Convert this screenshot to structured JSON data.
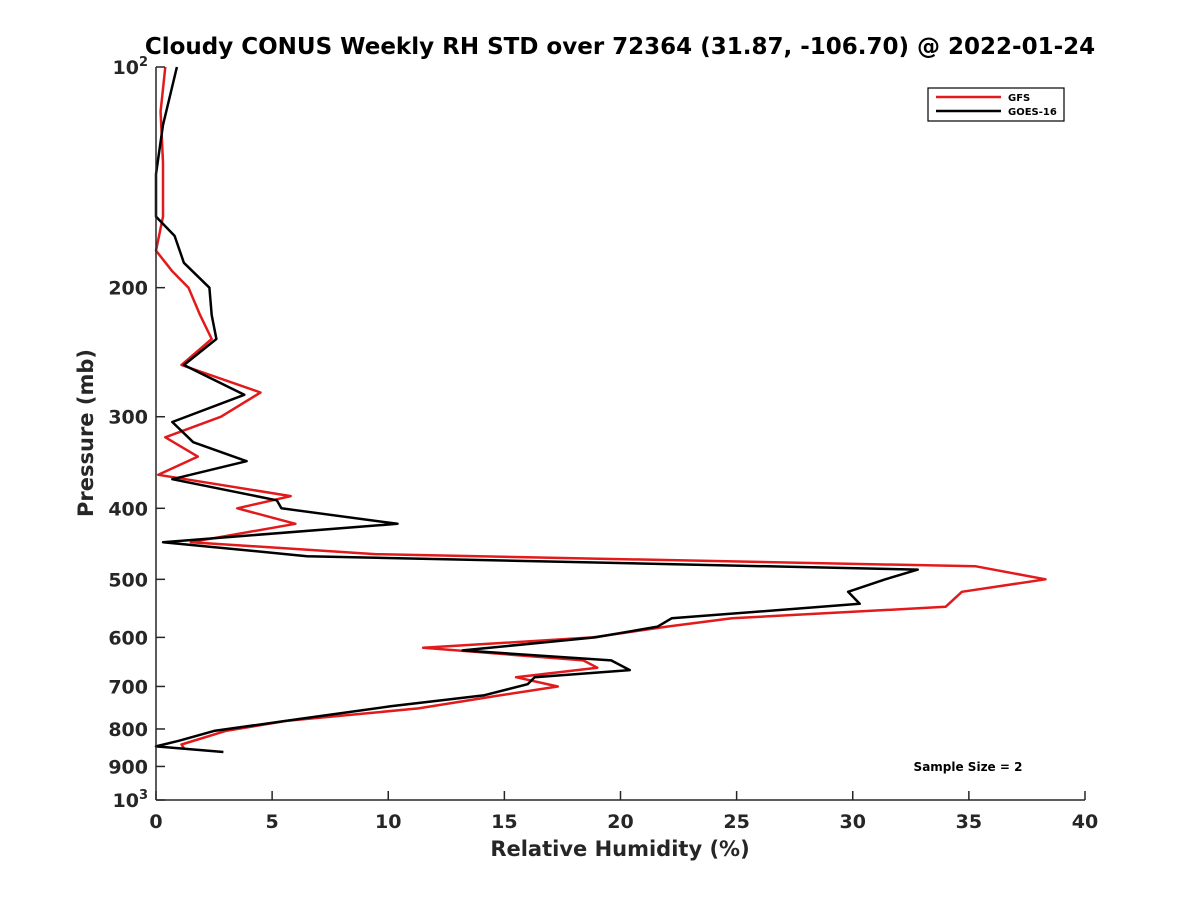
{
  "chart_data": {
    "type": "line",
    "title": "Cloudy CONUS Weekly RH STD over 72364 (31.87, -106.70) @ 2022-01-24",
    "xlabel": "Relative Humidity (%)",
    "ylabel": "Pressure (mb)",
    "xlim": [
      0,
      40
    ],
    "ylim": [
      100,
      1000
    ],
    "y_scale": "log",
    "y_reversed": true,
    "grid": false,
    "legend_position": "top-right",
    "x_ticks": [
      {
        "value": 0,
        "label": "0"
      },
      {
        "value": 5,
        "label": "5"
      },
      {
        "value": 10,
        "label": "10"
      },
      {
        "value": 15,
        "label": "15"
      },
      {
        "value": 20,
        "label": "20"
      },
      {
        "value": 25,
        "label": "25"
      },
      {
        "value": 30,
        "label": "30"
      },
      {
        "value": 35,
        "label": "35"
      },
      {
        "value": 40,
        "label": "40"
      }
    ],
    "y_ticks": [
      {
        "value": 100,
        "label": "10",
        "sup": "2"
      },
      {
        "value": 200,
        "label": "200",
        "sup": ""
      },
      {
        "value": 300,
        "label": "300",
        "sup": ""
      },
      {
        "value": 400,
        "label": "400",
        "sup": ""
      },
      {
        "value": 500,
        "label": "500",
        "sup": ""
      },
      {
        "value": 600,
        "label": "600",
        "sup": ""
      },
      {
        "value": 700,
        "label": "700",
        "sup": ""
      },
      {
        "value": 800,
        "label": "800",
        "sup": ""
      },
      {
        "value": 900,
        "label": "900",
        "sup": ""
      },
      {
        "value": 1000,
        "label": "10",
        "sup": "3"
      }
    ],
    "series": [
      {
        "name": "GFS",
        "color": "#e31a1c",
        "points": [
          [
            0.4,
            100
          ],
          [
            0.2,
            115
          ],
          [
            0.3,
            135
          ],
          [
            0.3,
            160
          ],
          [
            0.0,
            178
          ],
          [
            0.7,
            190
          ],
          [
            1.4,
            200
          ],
          [
            1.9,
            218
          ],
          [
            2.4,
            235
          ],
          [
            1.1,
            255
          ],
          [
            4.5,
            278
          ],
          [
            2.8,
            300
          ],
          [
            0.4,
            320
          ],
          [
            1.8,
            340
          ],
          [
            0.1,
            360
          ],
          [
            5.8,
            385
          ],
          [
            3.5,
            400
          ],
          [
            6.0,
            420
          ],
          [
            1.5,
            445
          ],
          [
            9.5,
            462
          ],
          [
            35.3,
            480
          ],
          [
            38.3,
            500
          ],
          [
            34.7,
            520
          ],
          [
            34.0,
            545
          ],
          [
            24.8,
            565
          ],
          [
            22.0,
            580
          ],
          [
            18.8,
            600
          ],
          [
            11.5,
            620
          ],
          [
            18.4,
            645
          ],
          [
            19.0,
            660
          ],
          [
            15.5,
            680
          ],
          [
            17.3,
            700
          ],
          [
            14.8,
            720
          ],
          [
            11.3,
            750
          ],
          [
            5.6,
            780
          ],
          [
            3.0,
            805
          ],
          [
            1.1,
            840
          ],
          [
            1.2,
            850
          ]
        ]
      },
      {
        "name": "GOES-16",
        "color": "#000000",
        "points": [
          [
            0.9,
            100
          ],
          [
            0.3,
            120
          ],
          [
            0.0,
            140
          ],
          [
            0.0,
            160
          ],
          [
            0.8,
            170
          ],
          [
            1.2,
            185
          ],
          [
            2.3,
            200
          ],
          [
            2.4,
            218
          ],
          [
            2.6,
            235
          ],
          [
            1.2,
            255
          ],
          [
            3.8,
            280
          ],
          [
            0.7,
            305
          ],
          [
            1.6,
            325
          ],
          [
            3.9,
            345
          ],
          [
            0.7,
            365
          ],
          [
            5.2,
            390
          ],
          [
            5.4,
            400
          ],
          [
            10.4,
            420
          ],
          [
            0.3,
            445
          ],
          [
            6.5,
            465
          ],
          [
            32.8,
            485
          ],
          [
            31.4,
            500
          ],
          [
            29.8,
            520
          ],
          [
            30.3,
            540
          ],
          [
            22.2,
            565
          ],
          [
            21.6,
            580
          ],
          [
            18.9,
            600
          ],
          [
            13.2,
            625
          ],
          [
            19.6,
            645
          ],
          [
            20.4,
            665
          ],
          [
            16.3,
            680
          ],
          [
            16.0,
            695
          ],
          [
            14.1,
            720
          ],
          [
            10.1,
            745
          ],
          [
            6.2,
            775
          ],
          [
            2.5,
            805
          ],
          [
            1.0,
            830
          ],
          [
            0.0,
            845
          ],
          [
            2.9,
            860
          ]
        ]
      }
    ],
    "annotation": "Sample Size = 2"
  }
}
